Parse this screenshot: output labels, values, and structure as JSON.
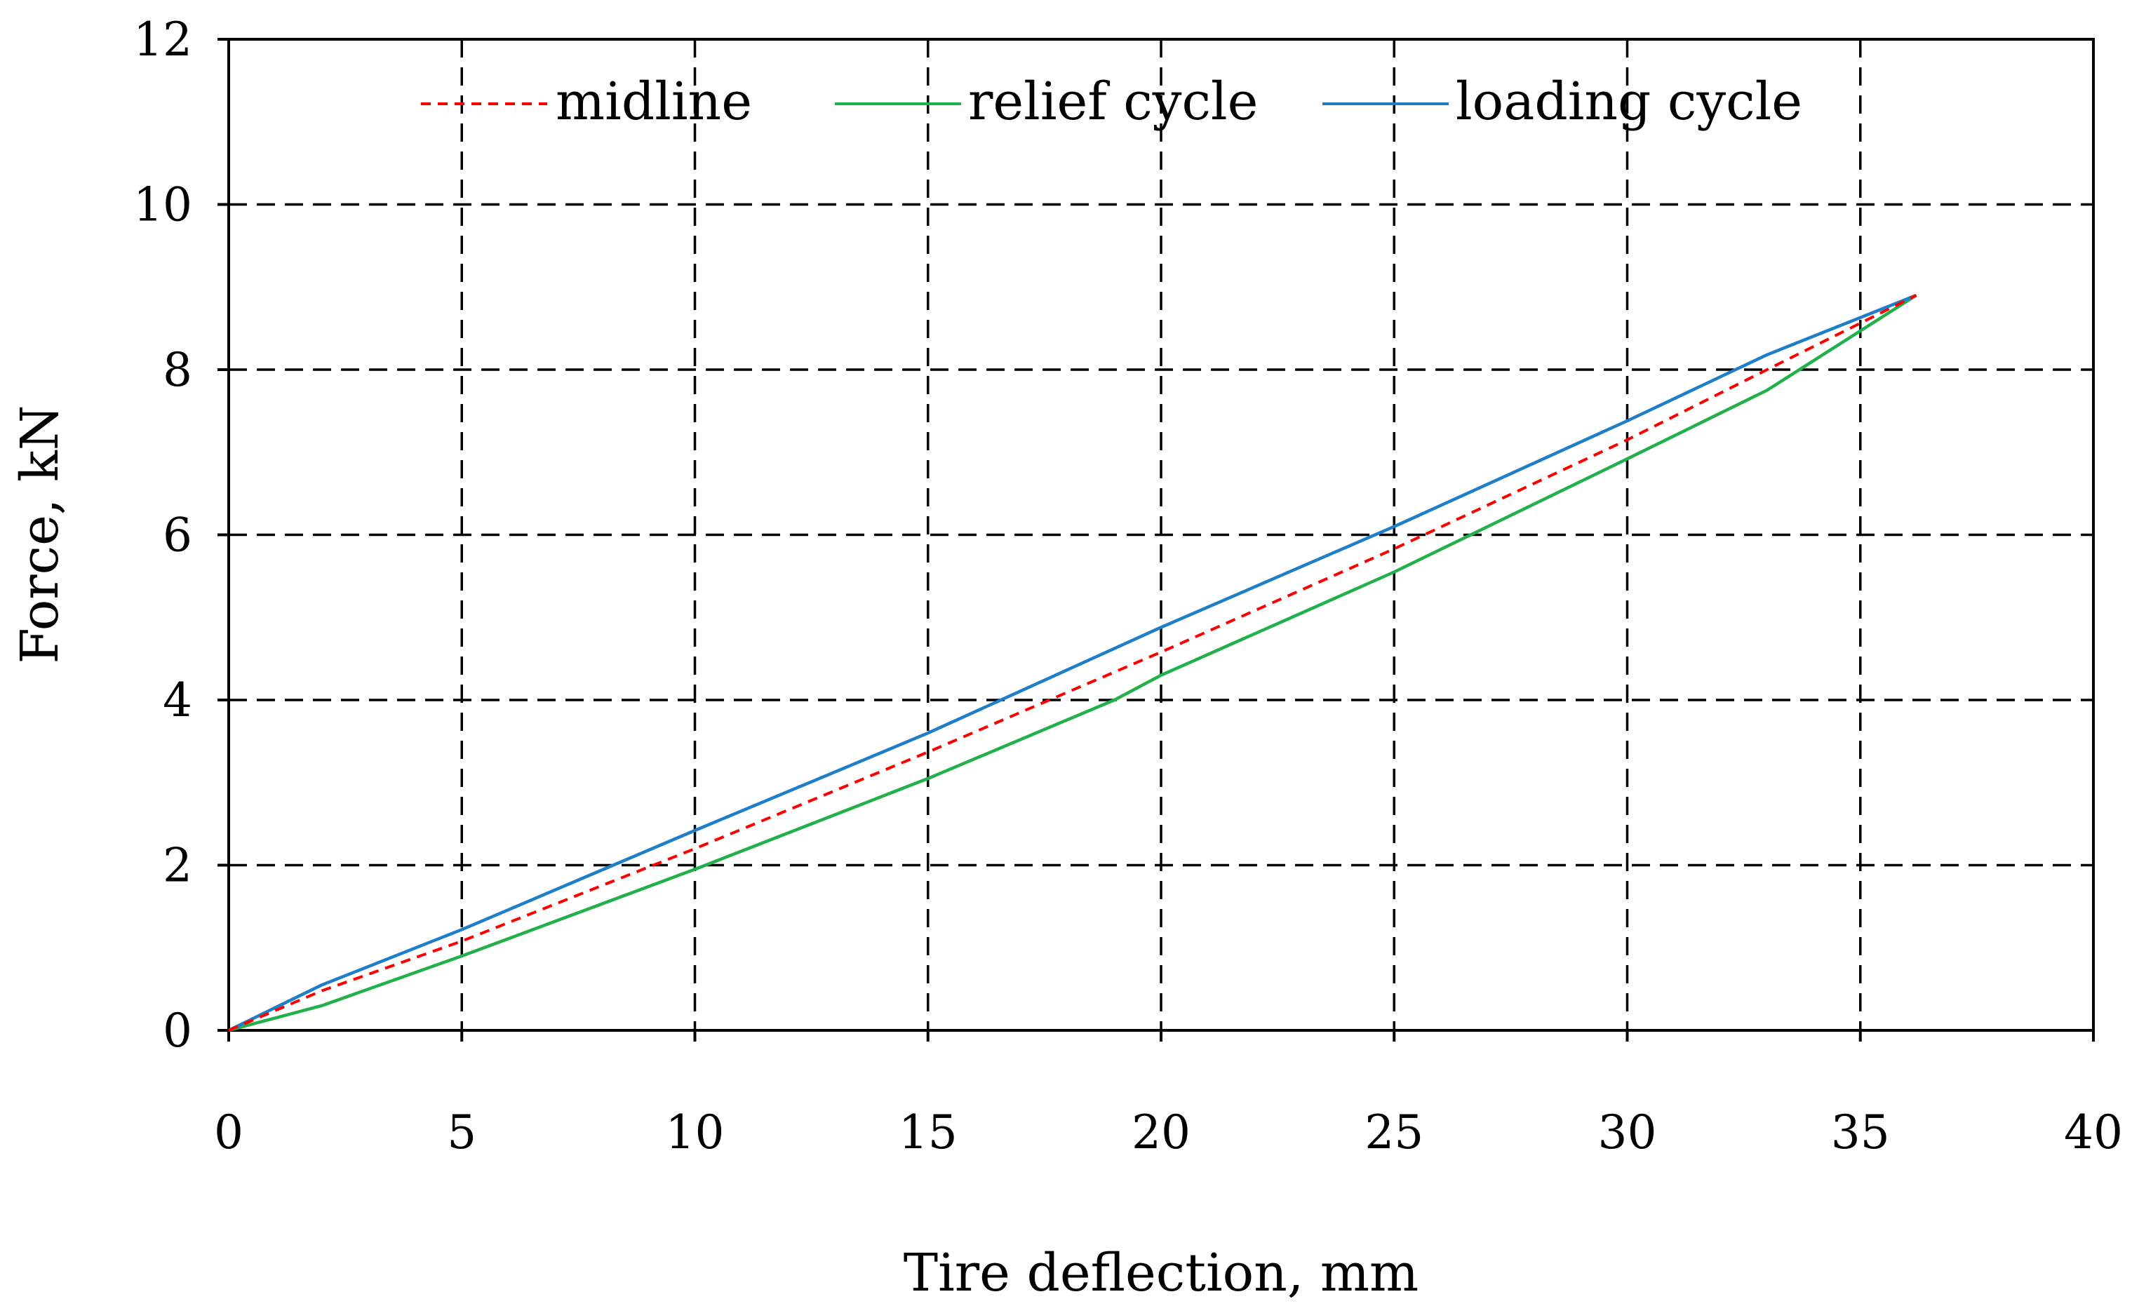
{
  "chart_data": {
    "type": "line",
    "title": "",
    "xlabel": "Tire deflection, mm",
    "ylabel": "Force,  kN",
    "xlim": [
      0,
      40
    ],
    "ylim": [
      0,
      12
    ],
    "x_ticks": [
      0,
      5,
      10,
      15,
      20,
      25,
      30,
      35,
      40
    ],
    "y_ticks": [
      0,
      2,
      4,
      6,
      8,
      10,
      12
    ],
    "x_tick_labels": [
      "0",
      "5",
      "10",
      "15",
      "20",
      "25",
      "30",
      "35",
      "40"
    ],
    "y_tick_labels": [
      "0",
      "2",
      "4",
      "6",
      "8",
      "10",
      "12"
    ],
    "grid": true,
    "legend_position": "top",
    "series": [
      {
        "name": "midline",
        "color": "#ff0000",
        "style": "dashed",
        "x": [
          0,
          2,
          5,
          10,
          15,
          20,
          25,
          30,
          33,
          36.2
        ],
        "y": [
          0,
          0.48,
          1.08,
          2.2,
          3.37,
          4.58,
          5.83,
          7.15,
          8.0,
          8.9
        ]
      },
      {
        "name": "relief cycle",
        "color": "#22b04a",
        "style": "solid",
        "x": [
          0,
          2,
          5,
          10,
          15,
          19,
          20,
          25,
          30,
          33,
          36.2
        ],
        "y": [
          0,
          0.3,
          0.9,
          1.95,
          3.05,
          4.0,
          4.3,
          5.55,
          6.92,
          7.75,
          8.9
        ]
      },
      {
        "name": "loading cycle",
        "color": "#1e7ec8",
        "style": "solid",
        "x": [
          0,
          2,
          5,
          10,
          15,
          20,
          25,
          30,
          33,
          36.2
        ],
        "y": [
          0,
          0.55,
          1.22,
          2.42,
          3.6,
          4.88,
          6.1,
          7.38,
          8.18,
          8.9
        ]
      }
    ]
  }
}
